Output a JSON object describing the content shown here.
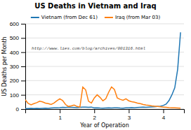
{
  "chart_data": {
    "type": "line",
    "title": "US Deaths in Vietnam and Iraq",
    "xlabel": "Year of Operation",
    "ylabel": "US Deaths per Month",
    "annotation": "http://www.lies.com/blog/archives/001316.html",
    "x": [
      0.0,
      0.083,
      0.167,
      0.25,
      0.333,
      0.417,
      0.5,
      0.583,
      0.667,
      0.75,
      0.833,
      0.917,
      1.0,
      1.083,
      1.167,
      1.25,
      1.333,
      1.417,
      1.5,
      1.583,
      1.667,
      1.75,
      1.833,
      1.917,
      2.0,
      2.083,
      2.167,
      2.25,
      2.333,
      2.417,
      2.5,
      2.583,
      2.667,
      2.75,
      2.833,
      2.917,
      3.0,
      3.083,
      3.167,
      3.25,
      3.333,
      3.417,
      3.5,
      3.583,
      3.667,
      3.75,
      3.833,
      3.917,
      4.0,
      4.083,
      4.167,
      4.25,
      4.333,
      4.417,
      4.5
    ],
    "series": [
      {
        "name": "Vietnam (from Dec 61)",
        "values": [
          3,
          4,
          5,
          4,
          5,
          4,
          5,
          6,
          5,
          7,
          8,
          9,
          10,
          12,
          11,
          13,
          12,
          11,
          10,
          12,
          14,
          13,
          12,
          14,
          8,
          9,
          7,
          6,
          7,
          8,
          7,
          8,
          9,
          7,
          6,
          8,
          9,
          10,
          9,
          11,
          12,
          13,
          12,
          14,
          15,
          16,
          18,
          20,
          25,
          35,
          60,
          100,
          150,
          280,
          540
        ]
      },
      {
        "name": "Iraq (from Mar 03)",
        "values": [
          65,
          40,
          30,
          38,
          45,
          55,
          50,
          42,
          38,
          32,
          42,
          58,
          72,
          60,
          32,
          18,
          22,
          28,
          18,
          14,
          155,
          135,
          55,
          42,
          78,
          100,
          82,
          58,
          72,
          118,
          155,
          138,
          78,
          68,
          62,
          72,
          58,
          52,
          48,
          42,
          38,
          32,
          28,
          26,
          22,
          20,
          18,
          16,
          14,
          12,
          10,
          9,
          8,
          7,
          6
        ]
      }
    ],
    "xlim": [
      0,
      4.6
    ],
    "xticks": [
      1,
      2,
      3,
      4
    ],
    "ylim": [
      0,
      600
    ],
    "yticks": [
      0,
      100,
      200,
      300,
      400,
      500,
      600
    ],
    "grid": true,
    "legend": "top"
  }
}
